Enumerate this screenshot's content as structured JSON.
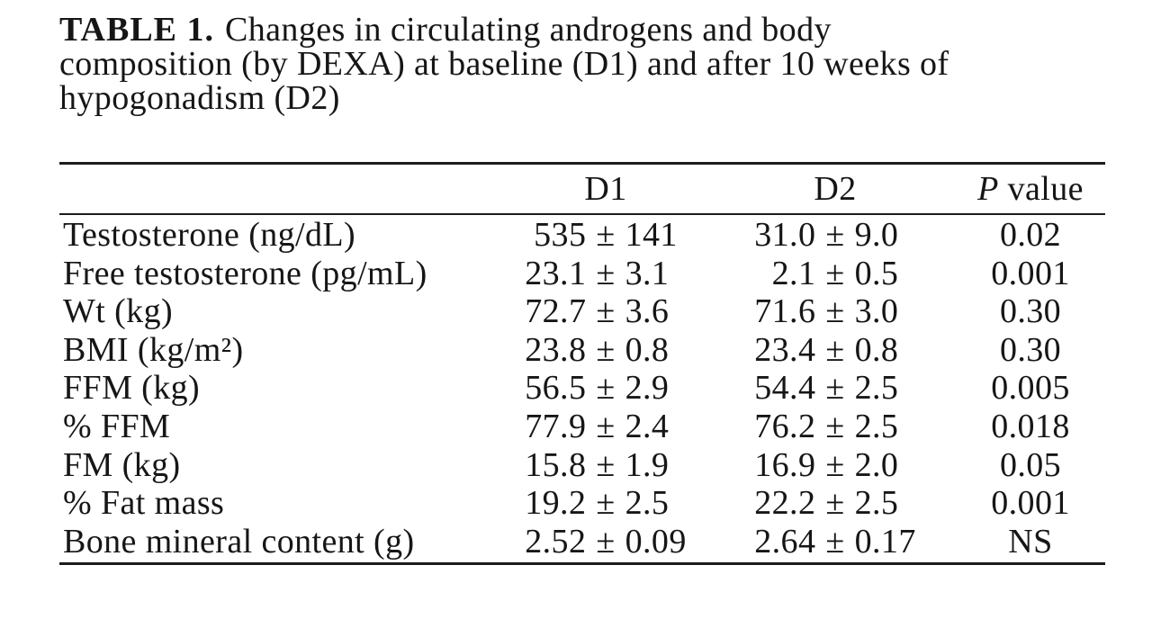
{
  "caption": {
    "label": "TABLE 1.",
    "line1": "Changes in circulating androgens and body",
    "line2": "composition (by DEXA) at baseline (D1) and after 10 weeks of",
    "line3": "hypogonadism (D2)"
  },
  "table": {
    "columns": [
      "",
      "D1",
      "D2",
      "P value"
    ],
    "rows": [
      {
        "label": "Testosterone (ng/dL)",
        "d1": "535 ± 141",
        "d2": "31.0 ± 9.0",
        "p": "0.02"
      },
      {
        "label": "Free testosterone (pg/mL)",
        "d1": "23.1 ± 3.1",
        "d2": "2.1 ± 0.5",
        "p": "0.001"
      },
      {
        "label": "Wt (kg)",
        "d1": "72.7 ± 3.6",
        "d2": "71.6 ± 3.0",
        "p": "0.30"
      },
      {
        "label": "BMI (kg/m²)",
        "d1": "23.8 ± 0.8",
        "d2": "23.4 ± 0.8",
        "p": "0.30"
      },
      {
        "label": "FFM (kg)",
        "d1": "56.5 ± 2.9",
        "d2": "54.4 ± 2.5",
        "p": "0.005"
      },
      {
        "label": "% FFM",
        "d1": "77.9 ± 2.4",
        "d2": "76.2 ± 2.5",
        "p": "0.018"
      },
      {
        "label": "FM (kg)",
        "d1": "15.8 ± 1.9",
        "d2": "16.9 ± 2.0",
        "p": "0.05"
      },
      {
        "label": "% Fat mass",
        "d1": "19.2 ± 2.5",
        "d2": "22.2 ± 2.5",
        "p": "0.001"
      },
      {
        "label": "Bone mineral content (g)",
        "d1": "2.52 ± 0.09",
        "d2": "2.64 ± 0.17",
        "p": "NS"
      }
    ]
  },
  "colors": {
    "text": "#161616",
    "rule": "#1c1c1c",
    "background": "#ffffff"
  }
}
